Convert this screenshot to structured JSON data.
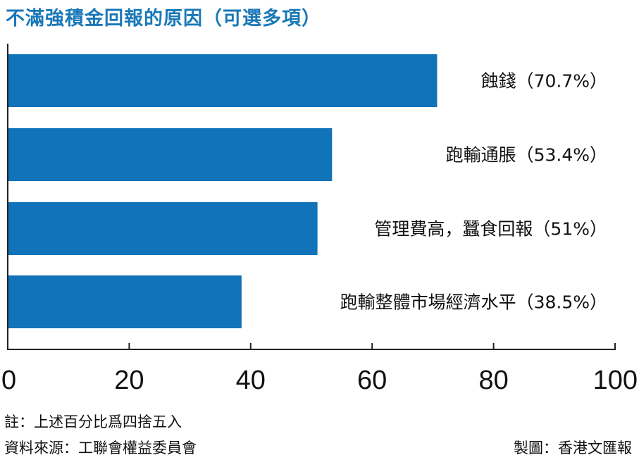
{
  "chart_data": {
    "type": "bar",
    "orientation": "horizontal",
    "title": "不滿強積金回報的原因（可選多項）",
    "categories": [
      "蝕錢",
      "跑輸通脹",
      "管理費高，蠶食回報",
      "跑輸整體市場經濟水平"
    ],
    "values": [
      70.7,
      53.4,
      51,
      38.5
    ],
    "bar_labels": [
      "蝕錢（70.7%）",
      "跑輸通脹（53.4%）",
      "管理費高，蠶食回報（51%）",
      "跑輸整體市場經濟水平（38.5%）"
    ],
    "xlim": [
      0,
      100
    ],
    "xticks": [
      0,
      20,
      40,
      60,
      80,
      100
    ],
    "xtick_labels": [
      "0",
      "20",
      "40",
      "60",
      "80",
      "100"
    ],
    "bar_color": "#1173b9",
    "grid": false
  },
  "notes": {
    "rounding": "註：上述百分比爲四捨五入",
    "source": "資料來源：工聯會權益委員會",
    "credit": "製圖：香港文匯報"
  }
}
